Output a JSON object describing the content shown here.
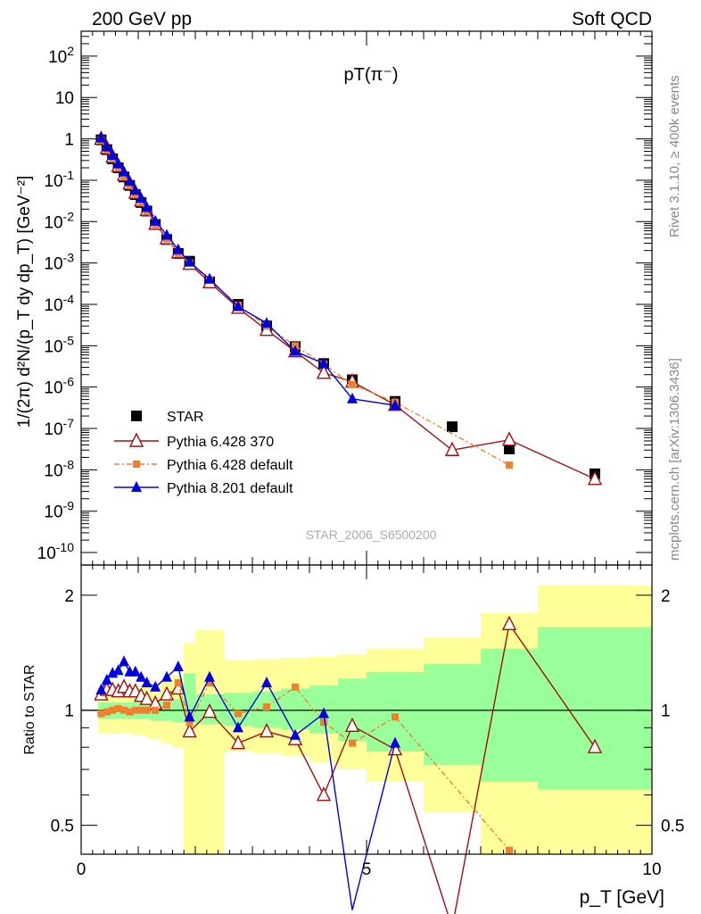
{
  "header": {
    "left": "200 GeV pp",
    "right": "Soft QCD",
    "side_top": "Rivet 3.1.10, ≥ 400k events",
    "side_bottom": "mcplots.cern.ch [arXiv:1306.3436]",
    "watermark": "STAR_2006_S6500200"
  },
  "chart_data": [
    {
      "type": "scatter",
      "title": "pT(π⁻)",
      "ylabel": "1/(2π) d²N/(p_T dy dp_T) [GeV⁻²]",
      "yscale": "log",
      "ylim": [
        5e-11,
        400
      ],
      "xlim": [
        0,
        10
      ],
      "legend_position": "bottom-left",
      "x": [
        0.35,
        0.45,
        0.55,
        0.65,
        0.75,
        0.85,
        0.95,
        1.05,
        1.15,
        1.3,
        1.5,
        1.7,
        1.9,
        2.25,
        2.75,
        3.25,
        3.75,
        4.25,
        4.75,
        5.5,
        6.5,
        7.5,
        9.0
      ],
      "series": [
        {
          "name": "STAR",
          "color": "#000000",
          "marker": "filled-square",
          "values": [
            0.95,
            0.55,
            0.33,
            0.2,
            0.12,
            0.075,
            0.045,
            0.029,
            0.018,
            0.0085,
            0.0037,
            0.0017,
            0.0011,
            0.00035,
            0.0001,
            3e-05,
            9.5e-06,
            3.7e-06,
            1.5e-06,
            4.5e-07,
            1.1e-07,
            3.2e-08,
            8e-09
          ]
        },
        {
          "name": "Pythia 6.428 370",
          "color": "#a01010",
          "marker": "open-triangle",
          "values": [
            1.0,
            0.6,
            0.37,
            0.22,
            0.135,
            0.083,
            0.05,
            0.032,
            0.019,
            0.0088,
            0.0039,
            0.0018,
            0.00095,
            0.00034,
            8.2e-05,
            2.4e-05,
            7.3e-06,
            2.2e-06,
            1.35e-06,
            3.7e-07,
            3e-08,
            5.3e-08,
            6e-09
          ]
        },
        {
          "name": "Pythia 6.428 default",
          "color": "#f08030",
          "marker": "filled-square",
          "dashed": true,
          "values": [
            0.93,
            0.54,
            0.33,
            0.2,
            0.12,
            0.074,
            0.045,
            0.029,
            0.018,
            0.0085,
            0.0038,
            0.0017,
            0.001,
            0.00038,
            9.5e-05,
            3e-05,
            1e-05,
            3.6e-06,
            1.15e-06,
            4.3e-07,
            null,
            1.3e-08,
            null
          ]
        },
        {
          "name": "Pythia 8.201 default",
          "color": "#0000e0",
          "marker": "filled-triangle",
          "values": [
            1.05,
            0.64,
            0.4,
            0.25,
            0.16,
            0.094,
            0.057,
            0.037,
            0.022,
            0.0103,
            0.0047,
            0.0021,
            0.00105,
            0.00041,
            8.8e-05,
            3.5e-05,
            7.3e-06,
            3.7e-06,
            5.2e-07,
            3.6e-07,
            null,
            null,
            null
          ]
        }
      ]
    },
    {
      "type": "line",
      "ylabel": "Ratio to STAR",
      "xlabel": "p_T [GeV]",
      "yscale": "log",
      "ylim": [
        0.42,
        2.4
      ],
      "xlim": [
        0,
        10
      ],
      "x": [
        0.35,
        0.45,
        0.55,
        0.65,
        0.75,
        0.85,
        0.95,
        1.05,
        1.15,
        1.3,
        1.5,
        1.7,
        1.9,
        2.25,
        2.75,
        3.25,
        3.75,
        4.25,
        4.75,
        5.5,
        6.5,
        7.5,
        9.0
      ],
      "series": [
        {
          "name": "Pythia 6.428 370",
          "color": "#a01010",
          "values": [
            1.1,
            1.13,
            1.13,
            1.12,
            1.15,
            1.12,
            1.12,
            1.09,
            1.07,
            1.04,
            1.1,
            1.14,
            0.88,
            0.99,
            0.82,
            0.88,
            0.84,
            0.6,
            0.91,
            0.79,
            0.27,
            1.68,
            0.8
          ]
        },
        {
          "name": "Pythia 6.428 default",
          "color": "#f08030",
          "values": [
            0.98,
            0.99,
            1.0,
            1.01,
            1.0,
            0.99,
            1.0,
            1.0,
            1.0,
            1.0,
            1.03,
            1.18,
            0.93,
            1.18,
            0.98,
            1.02,
            1.15,
            0.93,
            0.82,
            0.96,
            null,
            0.43,
            null
          ]
        },
        {
          "name": "Pythia 8.201 default",
          "color": "#0000e0",
          "values": [
            1.13,
            1.2,
            1.25,
            1.27,
            1.34,
            1.26,
            1.26,
            1.22,
            1.18,
            1.15,
            1.22,
            1.3,
            0.96,
            1.22,
            0.9,
            1.18,
            0.86,
            0.98,
            0.3,
            0.82,
            null,
            null,
            null
          ]
        }
      ],
      "bands": {
        "edges": [
          0.3,
          0.4,
          0.5,
          0.6,
          0.7,
          0.8,
          0.9,
          1.0,
          1.1,
          1.2,
          1.4,
          1.6,
          1.8,
          2.0,
          2.5,
          3.0,
          3.5,
          4.0,
          4.5,
          5.0,
          6.0,
          7.0,
          8.0,
          10.0
        ],
        "stat_lo": [
          0.95,
          0.95,
          0.95,
          0.95,
          0.95,
          0.95,
          0.95,
          0.95,
          0.95,
          0.94,
          0.94,
          0.93,
          0.93,
          0.92,
          0.91,
          0.9,
          0.89,
          0.87,
          0.83,
          0.78,
          0.72,
          0.65,
          0.62
        ],
        "stat_hi": [
          1.05,
          1.05,
          1.05,
          1.05,
          1.05,
          1.05,
          1.05,
          1.05,
          1.05,
          1.06,
          1.06,
          1.07,
          1.25,
          1.1,
          1.11,
          1.12,
          1.14,
          1.16,
          1.21,
          1.26,
          1.32,
          1.45,
          1.65
        ],
        "tot_lo": [
          0.87,
          0.87,
          0.87,
          0.87,
          0.87,
          0.87,
          0.86,
          0.86,
          0.85,
          0.84,
          0.82,
          0.8,
          0.38,
          0.4,
          0.78,
          0.77,
          0.76,
          0.73,
          0.7,
          0.65,
          0.54,
          0.42,
          0.42
        ],
        "tot_hi": [
          1.14,
          1.14,
          1.14,
          1.14,
          1.14,
          1.14,
          1.15,
          1.15,
          1.16,
          1.18,
          1.2,
          1.23,
          1.5,
          1.62,
          1.35,
          1.36,
          1.37,
          1.38,
          1.4,
          1.45,
          1.55,
          1.8,
          2.12
        ]
      }
    }
  ]
}
